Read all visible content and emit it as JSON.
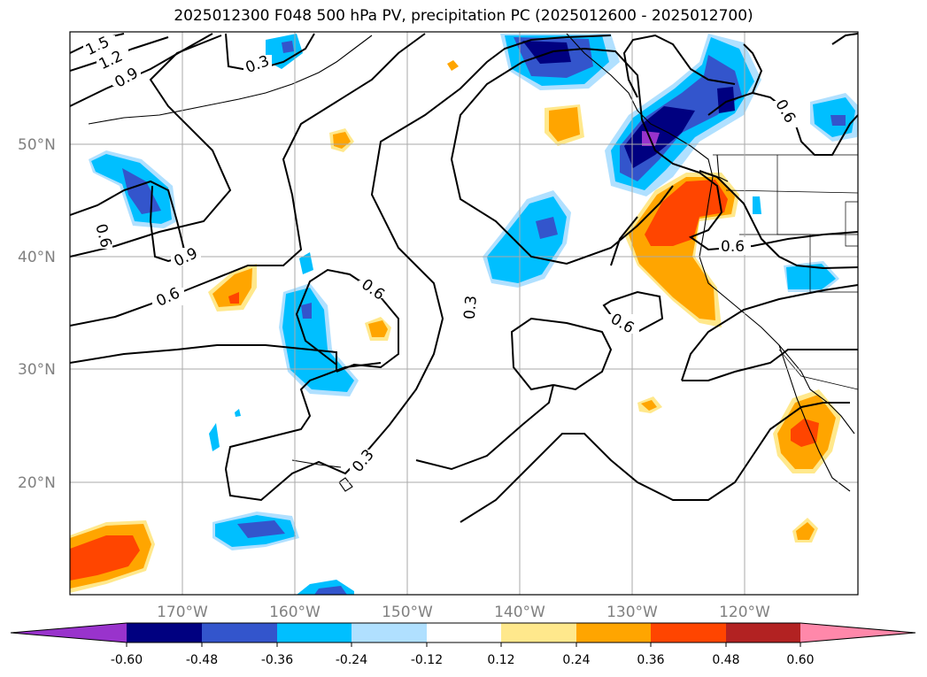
{
  "title": "2025012300 F048 500 hPa PV, precipitation PC (2025012600 - 2025012700)",
  "map": {
    "lon_range": [
      -180,
      -110
    ],
    "lat_range": [
      10,
      60
    ],
    "lat_labels": [
      "50°N",
      "40°N",
      "30°N",
      "20°N"
    ],
    "lon_labels": [
      "170°W",
      "160°W",
      "150°W",
      "140°W",
      "130°W",
      "120°W"
    ],
    "gridlines": true,
    "contour_labels": [
      "1.5",
      "1.2",
      "0.9",
      "0.3",
      "0.6",
      "0.9",
      "0.6",
      "0.6",
      "0.3",
      "0.3",
      "0.6",
      "0.6",
      "0.6"
    ]
  },
  "colorbar": {
    "tick_labels": [
      "-0.60",
      "-0.48",
      "-0.36",
      "-0.24",
      "-0.12",
      "0.12",
      "0.24",
      "0.36",
      "0.48",
      "0.60"
    ],
    "colors": [
      "#9933cc",
      "#000080",
      "#3355cc",
      "#00bfff",
      "#b0e0ff",
      "#ffffff",
      "#ffe88c",
      "#ffa500",
      "#ff4500",
      "#b22222",
      "#ff88aa"
    ]
  },
  "fill_colors": {
    "lightblue": "#b0e0ff",
    "cyan": "#00bfff",
    "blue": "#3355cc",
    "navy": "#000080",
    "purple": "#9933cc",
    "yellow": "#ffe88c",
    "orange": "#ffa500",
    "red": "#ff4500"
  }
}
